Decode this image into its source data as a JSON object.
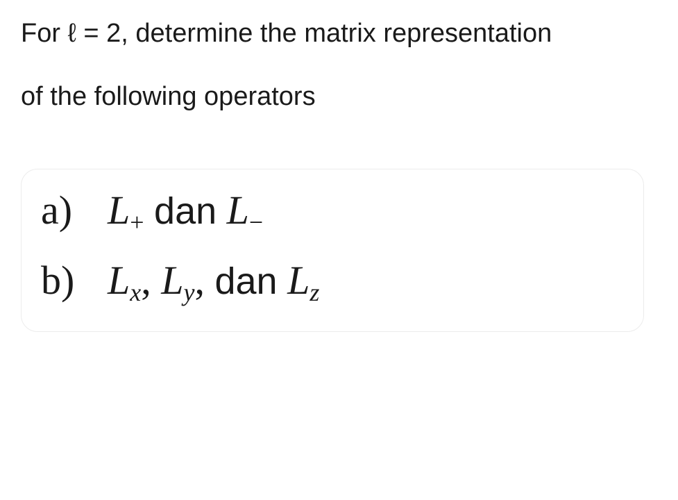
{
  "intro": {
    "line1": "For ℓ = 2, determine the matrix representation",
    "line2": "of the following operators"
  },
  "items": {
    "a": {
      "label": "a)",
      "op1_base": "L",
      "op1_sub": "+",
      "conj": "dan",
      "op2_base": "L",
      "op2_sub": "−"
    },
    "b": {
      "label": "b)",
      "op1_base": "L",
      "op1_sub": "x",
      "sep1": ",",
      "op2_base": "L",
      "op2_sub": "y",
      "sep2": ",",
      "conj": "dan",
      "op3_base": "L",
      "op3_sub": "z"
    }
  },
  "colors": {
    "text": "#1a1a1a",
    "background": "#ffffff",
    "card_border": "#ececec"
  }
}
